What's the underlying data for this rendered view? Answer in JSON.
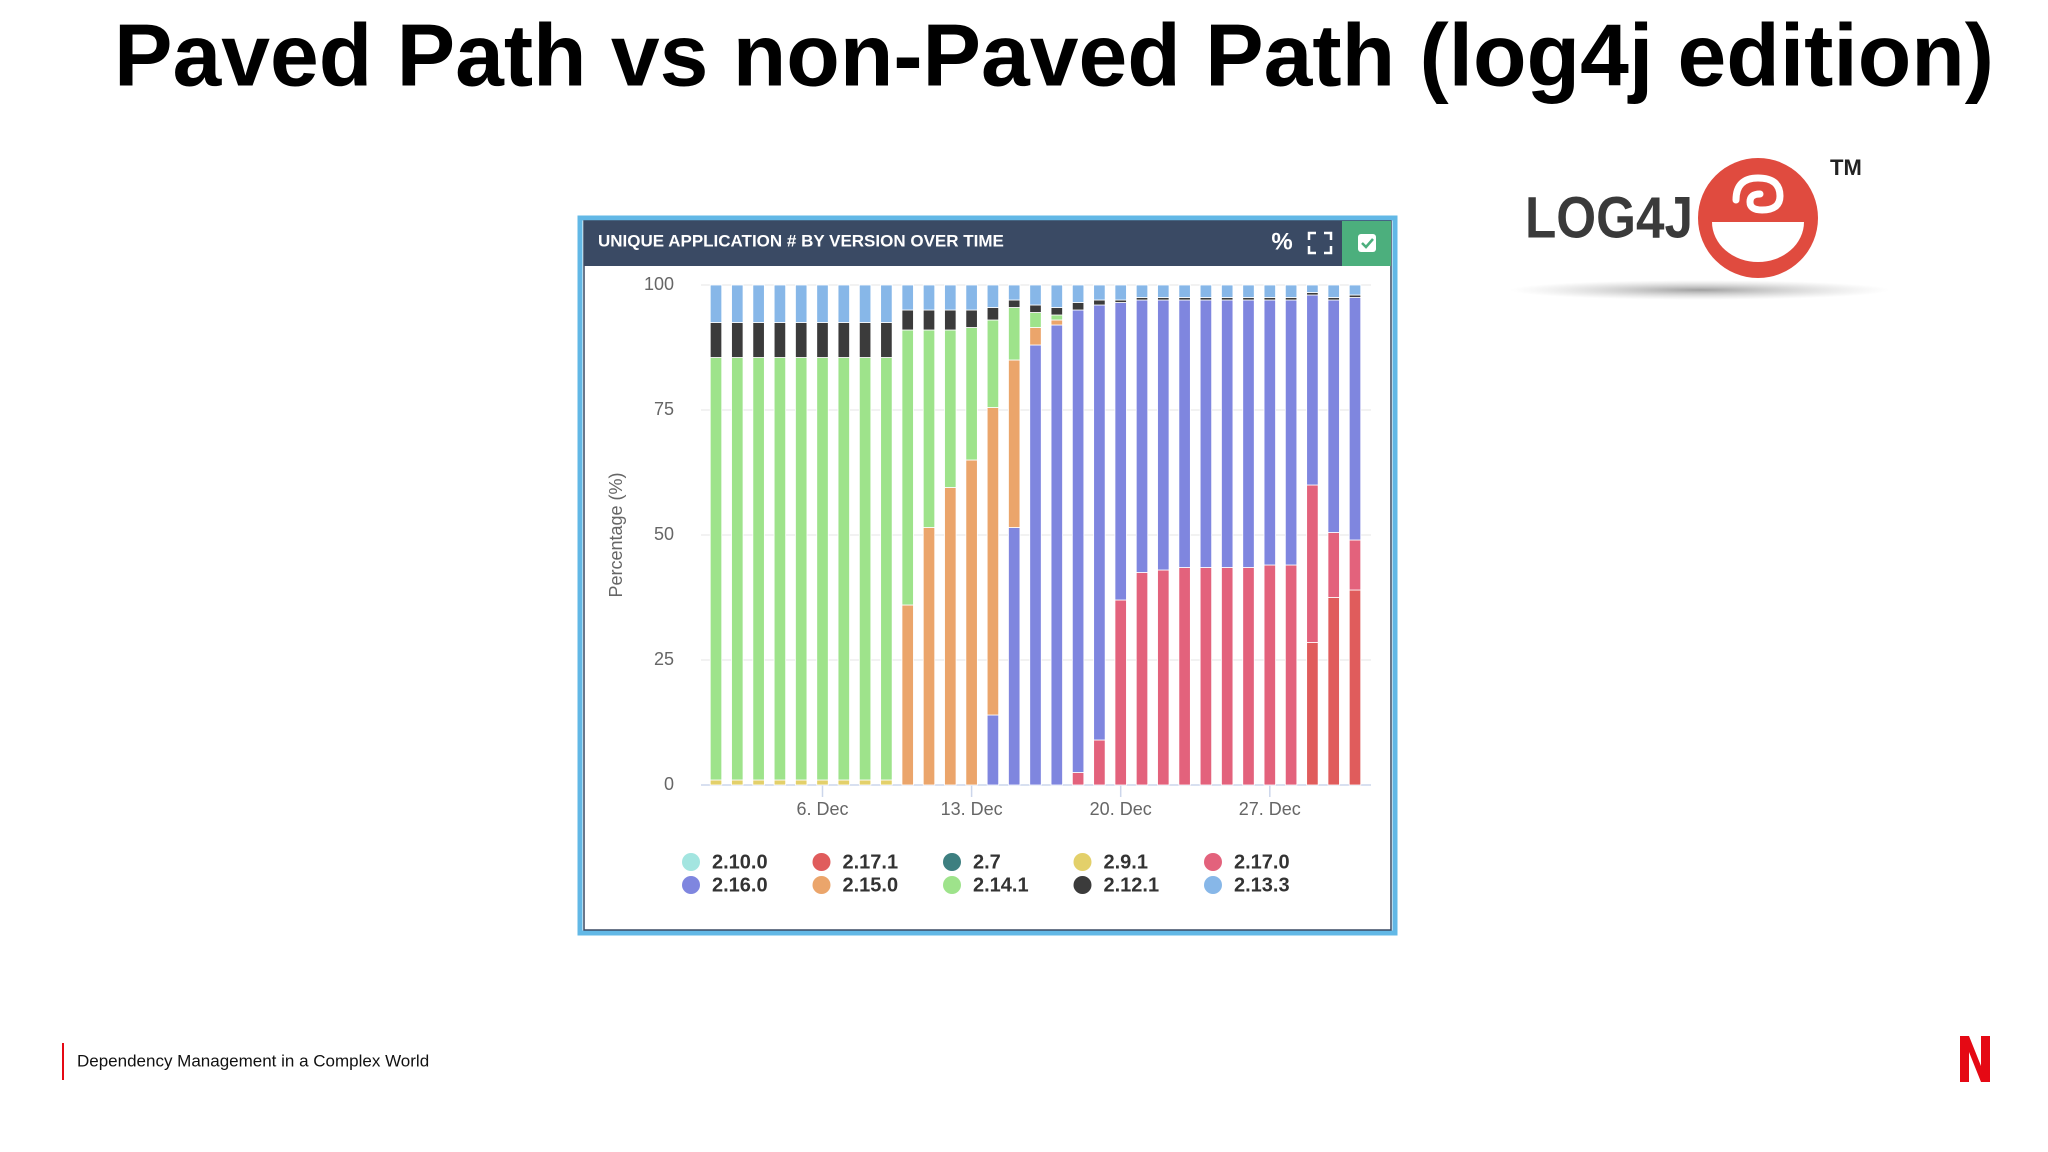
{
  "title": "Paved Path vs non-Paved Path (log4j edition)",
  "logo": {
    "text": "LOG4J",
    "tm": "TM"
  },
  "toolbar": {
    "percent": "%"
  },
  "footer": "Dependency Management in a Complex World",
  "chart_data": {
    "type": "bar",
    "stacked": true,
    "title": "UNIQUE APPLICATION # BY VERSION OVER TIME",
    "y_label": "Percentage (%)",
    "ylim": [
      0,
      100
    ],
    "yticks": [
      0,
      25,
      50,
      75,
      100
    ],
    "grid": true,
    "legend": "bottom",
    "categories": [
      null,
      null,
      null,
      null,
      null,
      "6. Dec",
      null,
      null,
      null,
      null,
      null,
      null,
      "13. Dec",
      null,
      null,
      null,
      null,
      null,
      null,
      "20. Dec",
      null,
      null,
      null,
      null,
      null,
      null,
      "27. Dec",
      null,
      null,
      null,
      null
    ],
    "series": [
      {
        "name": "2.10.0",
        "color": "#a3e5e0",
        "values": [
          0,
          0,
          0,
          0,
          0,
          0,
          0,
          0,
          0,
          0,
          0,
          0,
          0,
          0,
          0,
          0,
          0,
          0,
          0,
          0,
          0,
          0,
          0,
          0,
          0,
          0,
          0,
          0,
          0,
          0,
          0
        ]
      },
      {
        "name": "2.17.1",
        "color": "#e05c5c",
        "values": [
          0,
          0,
          0,
          0,
          0,
          0,
          0,
          0,
          0,
          0,
          0,
          0,
          0,
          0,
          0,
          0,
          0,
          0,
          0,
          0,
          0,
          0,
          0,
          0,
          0,
          0,
          0,
          0,
          28.5,
          37.5,
          39
        ]
      },
      {
        "name": "2.7",
        "color": "#3d7f80",
        "values": [
          0,
          0,
          0,
          0,
          0,
          0,
          0,
          0,
          0,
          0,
          0,
          0,
          0,
          0,
          0,
          0,
          0,
          0,
          0,
          0,
          0,
          0,
          0,
          0,
          0,
          0,
          0,
          0,
          0,
          0,
          0
        ]
      },
      {
        "name": "2.9.1",
        "color": "#e3d06a",
        "values": [
          1,
          1,
          1,
          1,
          1,
          1,
          1,
          1,
          1,
          0,
          0,
          0,
          0,
          0,
          0,
          0,
          0,
          0,
          0,
          0,
          0,
          0,
          0,
          0,
          0,
          0,
          0,
          0,
          0,
          0,
          0
        ]
      },
      {
        "name": "2.17.0",
        "color": "#e3627c",
        "values": [
          0,
          0,
          0,
          0,
          0,
          0,
          0,
          0,
          0,
          0,
          0,
          0,
          0,
          0,
          0,
          0,
          0,
          2.5,
          9,
          37,
          42.5,
          43,
          43.5,
          43.5,
          43.5,
          43.5,
          44,
          44,
          31.5,
          13,
          10
        ]
      },
      {
        "name": "2.16.0",
        "color": "#7f86df",
        "values": [
          0,
          0,
          0,
          0,
          0,
          0,
          0,
          0,
          0,
          0,
          0,
          0,
          0,
          14,
          51.5,
          88,
          92,
          92.5,
          87,
          59.5,
          54.5,
          54,
          53.5,
          53.5,
          53.5,
          53.5,
          53,
          53,
          38,
          46.5,
          48.5
        ]
      },
      {
        "name": "2.15.0",
        "color": "#eba56b",
        "values": [
          0,
          0,
          0,
          0,
          0,
          0,
          0,
          0,
          0,
          36,
          51.5,
          59.5,
          65,
          61.5,
          33.5,
          3.5,
          1,
          0,
          0,
          0,
          0,
          0,
          0,
          0,
          0,
          0,
          0,
          0,
          0,
          0,
          0
        ]
      },
      {
        "name": "2.14.1",
        "color": "#9ee38b",
        "values": [
          84.5,
          84.5,
          84.5,
          84.5,
          84.5,
          84.5,
          84.5,
          84.5,
          84.5,
          55,
          39.5,
          31.5,
          26.5,
          17.5,
          10.5,
          3,
          1,
          0,
          0,
          0,
          0,
          0,
          0,
          0,
          0,
          0,
          0,
          0,
          0,
          0,
          0
        ]
      },
      {
        "name": "2.12.1",
        "color": "#3b3b3b",
        "values": [
          7,
          7,
          7,
          7,
          7,
          7,
          7,
          7,
          7,
          4,
          4,
          4,
          3.5,
          2.5,
          1.5,
          1.5,
          1.5,
          1.5,
          1,
          0.5,
          0.5,
          0.5,
          0.5,
          0.5,
          0.5,
          0.5,
          0.5,
          0.5,
          0.5,
          0.5,
          0.5
        ]
      },
      {
        "name": "2.13.3",
        "color": "#87b7e8",
        "values": [
          7.5,
          7.5,
          7.5,
          7.5,
          7.5,
          7.5,
          7.5,
          7.5,
          7.5,
          5,
          5,
          5,
          5,
          4.5,
          3,
          4,
          4.5,
          3.5,
          3,
          3,
          2.5,
          2.5,
          2.5,
          2.5,
          2.5,
          2.5,
          2.5,
          2.5,
          1.5,
          2.5,
          2
        ]
      }
    ]
  }
}
